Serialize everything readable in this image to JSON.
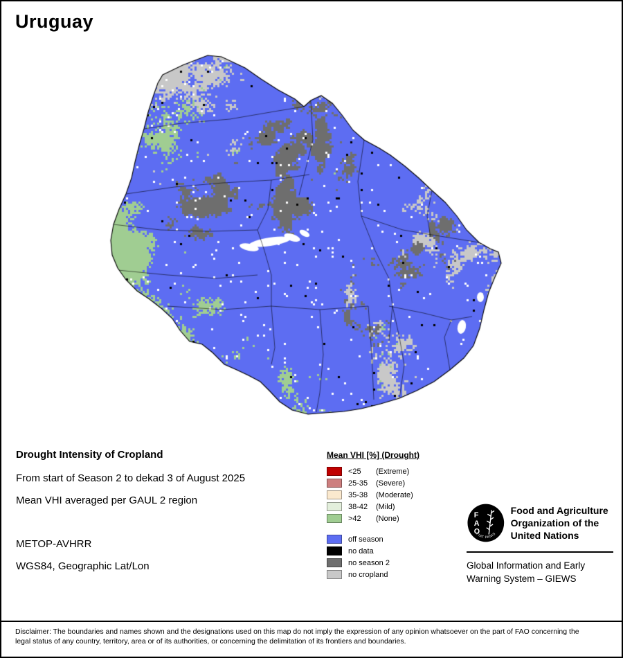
{
  "page": {
    "title": "Uruguay"
  },
  "map": {
    "colors": {
      "off_season": "#5d6df2",
      "none": "#a0cd92",
      "no_cropland": "#c8c8c8",
      "no_season2": "#6e6e6e",
      "no_data": "#000000"
    }
  },
  "info": {
    "heading": "Drought Intensity of Cropland",
    "line1": "From start of Season 2 to dekad 3 of August 2025",
    "line2": "Mean VHI averaged per GAUL 2 region",
    "sensor": "METOP-AVHRR",
    "projection": "WGS84, Geographic Lat/Lon"
  },
  "legend": {
    "title": "Mean VHI [%] (Drought)",
    "classes": [
      {
        "value": "<25",
        "qualifier": "(Extreme)",
        "color": "#c00000"
      },
      {
        "value": "25-35",
        "qualifier": "(Severe)",
        "color": "#cd7f7f"
      },
      {
        "value": "35-38",
        "qualifier": "(Moderate)",
        "color": "#fbe9ce"
      },
      {
        "value": "38-42",
        "qualifier": "(Mild)",
        "color": "#e3efdc"
      },
      {
        "value": ">42",
        "qualifier": "(None)",
        "color": "#a0cd92"
      }
    ],
    "extra": [
      {
        "label": "off season",
        "color": "#5d6df2"
      },
      {
        "label": "no data",
        "color": "#000000"
      },
      {
        "label": "no season 2",
        "color": "#6e6e6e"
      },
      {
        "label": "no cropland",
        "color": "#c8c8c8"
      }
    ]
  },
  "org": {
    "logo_letters": "FAO",
    "logo_motto": "FIAT PANIS",
    "name": "Food and Agriculture Organization of the United Nations",
    "subtitle": "Global Information and Early Warning System – GIEWS"
  },
  "disclaimer": "Disclaimer: The boundaries and names shown and the designations used on this map do not imply the expression of any opinion whatsoever on the part of FAO concerning the legal status of any country, territory, area or of its authorities, or concerning the delimitation of its frontiers and boundaries."
}
